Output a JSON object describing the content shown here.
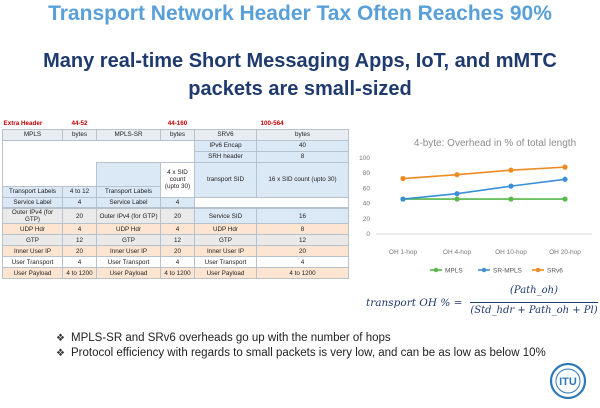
{
  "slide": {
    "top_title": "Transport Network Header Tax Often Reaches 90%",
    "subtitle_line1": "Many real-time Short Messaging Apps, IoT, and mMTC",
    "subtitle_line2": "packets are small-sized"
  },
  "table": {
    "extra_header": "Extra Header",
    "extra_mpls": "44-52",
    "extra_srmpls": "44-160",
    "extra_srv6": "100-564",
    "headers": [
      "MPLS",
      "bytes",
      "MPLS-SR",
      "bytes",
      "SRV6",
      "bytes"
    ],
    "srv6_rows": [
      {
        "label": "IPv6 Encap",
        "bytes": "40"
      },
      {
        "label": "SRH header",
        "bytes": "8"
      }
    ],
    "sr_count": "4 x SID count (upto 30)",
    "srv6_sid_label": "transport SID",
    "srv6_sid_count": "16 x SID count (upto 30)",
    "transport_labels": "Transport Labels",
    "transport_bytes": "4 to 12",
    "transport_labels_sr": "Transport Labels",
    "service_label": "Service Label",
    "service_bytes": "4",
    "service_label_sr": "Service Label",
    "service_bytes_sr": "4",
    "rows": [
      [
        "Outer IPv4 (for GTP)",
        "20",
        "Outer IPv4 (for GTP)",
        "20",
        "Service SID",
        "16"
      ],
      [
        "UDP Hdr",
        "4",
        "UDP Hdr",
        "4",
        "UDP Hdr",
        "8"
      ],
      [
        "GTP",
        "12",
        "GTP",
        "12",
        "GTP",
        "12"
      ],
      [
        "Inner User IP",
        "20",
        "Inner User IP",
        "20",
        "Inner User IP",
        "20"
      ],
      [
        "User Transport",
        "4",
        "User Transport",
        "4",
        "User Transport",
        "4"
      ],
      [
        "User Payload",
        "4 to 1200",
        "User Payload",
        "4 to 1200",
        "User Payload",
        "4 to 1200"
      ]
    ]
  },
  "chart_data": {
    "type": "line",
    "title": "4-byte: Overhead in % of total length",
    "categories": [
      "OH 1-hop",
      "OH 4-hop",
      "OH 10-hop",
      "OH 20-hop"
    ],
    "ylim": [
      0,
      100
    ],
    "yticks": [
      "0",
      "20",
      "40",
      "60",
      "80",
      "100"
    ],
    "grid": false,
    "legend_position": "bottom",
    "series": [
      {
        "name": "MPLS",
        "color": "#55b848",
        "values": [
          46,
          46,
          46,
          46
        ]
      },
      {
        "name": "SR-MPLS",
        "color": "#3a8fd6",
        "values": [
          46,
          53,
          63,
          72
        ]
      },
      {
        "name": "SRv6",
        "color": "#ef8a22",
        "values": [
          73,
          78,
          84,
          88
        ]
      }
    ]
  },
  "formula": {
    "lhs": "transport OH % =",
    "numerator": "(Path_oh)",
    "denominator": "(Std_hdr + Path_oh + Pl)"
  },
  "bullets": [
    "MPLS-SR and SRv6 overheads go up with the number of hops",
    "Protocol efficiency with regards to small packets is very low, and can be as low as below 10%"
  ],
  "logo": {
    "text": "ITU",
    "color": "#2f78b8"
  }
}
